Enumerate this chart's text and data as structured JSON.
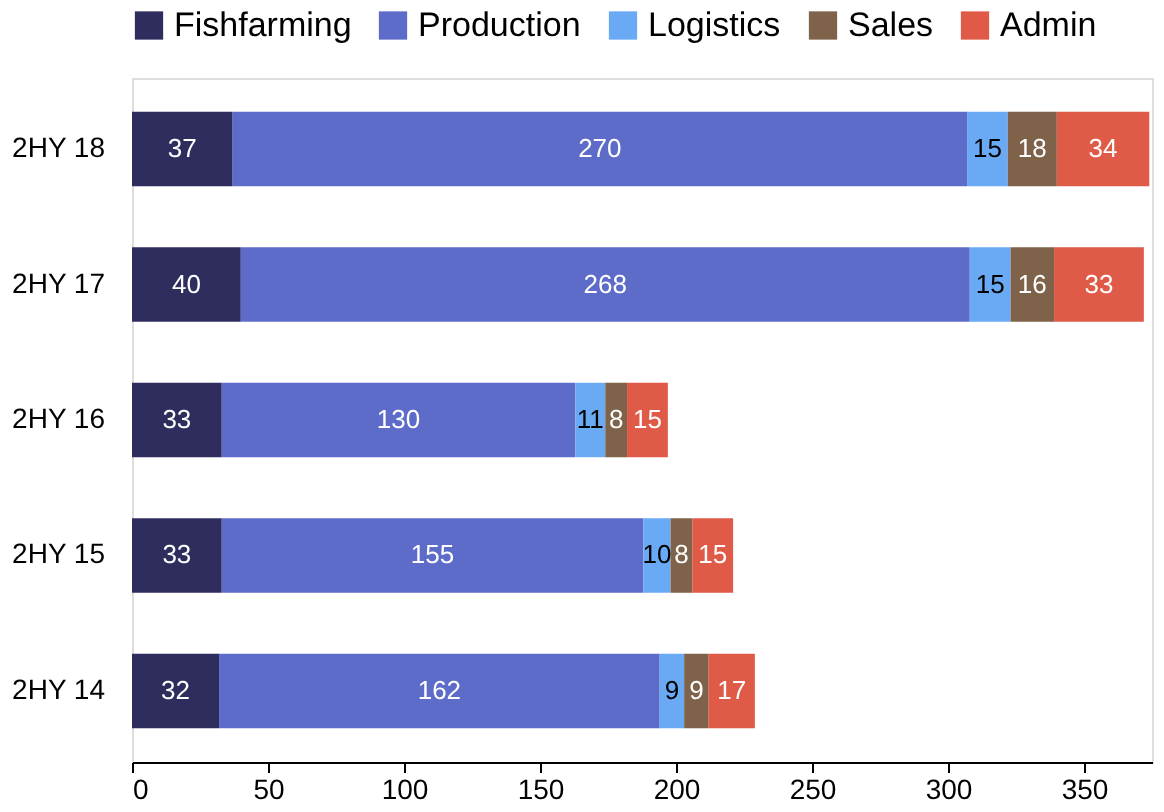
{
  "chart_data": {
    "type": "bar",
    "orientation": "horizontal",
    "stacked": true,
    "data_labels": true,
    "grid": false,
    "legend": "top",
    "categories": [
      "2HY 18",
      "2HY 17",
      "2HY 16",
      "2HY 15",
      "2HY 14"
    ],
    "series": [
      {
        "name": "Fishfarming",
        "color": "#2f2d5e",
        "values": [
          37,
          40,
          33,
          33,
          32
        ]
      },
      {
        "name": "Production",
        "color": "#5e6cc9",
        "values": [
          270,
          268,
          130,
          155,
          162
        ]
      },
      {
        "name": "Logistics",
        "color": "#6aaaf4",
        "values": [
          15,
          15,
          11,
          10,
          9
        ]
      },
      {
        "name": "Sales",
        "color": "#7e6249",
        "values": [
          18,
          16,
          8,
          8,
          9
        ]
      },
      {
        "name": "Admin",
        "color": "#df5a47",
        "values": [
          34,
          33,
          15,
          15,
          17
        ]
      }
    ],
    "xlim": [
      0,
      375
    ],
    "xticks": [
      0,
      50,
      100,
      150,
      200,
      250,
      300,
      350
    ]
  }
}
